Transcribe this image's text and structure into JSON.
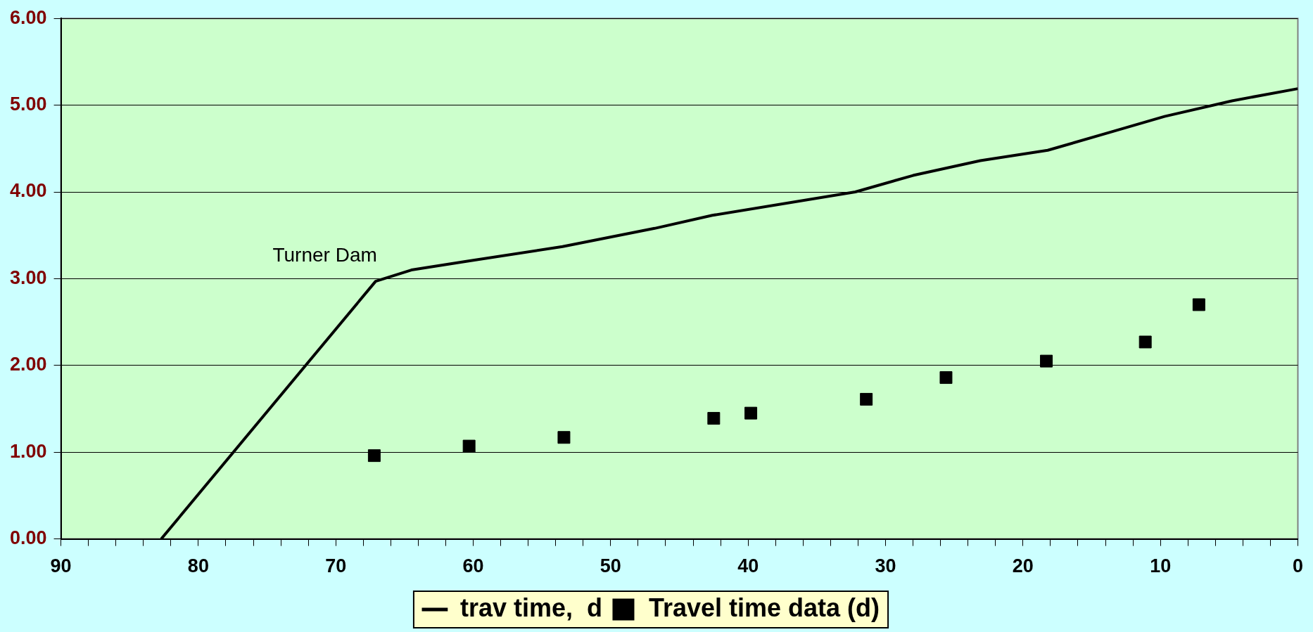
{
  "chart_data": {
    "type": "line",
    "xlim": [
      90,
      0
    ],
    "xticks": [
      90,
      {
        "value": 88,
        "label": null
      },
      {
        "value": 86,
        "label": null
      },
      {
        "value": 84,
        "label": null
      },
      {
        "value": 82,
        "label": null
      },
      80,
      {
        "value": 78,
        "label": null
      },
      {
        "value": 76,
        "label": null
      },
      {
        "value": 74,
        "label": null
      },
      {
        "value": 72,
        "label": null
      },
      70,
      {
        "value": 68,
        "label": null
      },
      {
        "value": 66,
        "label": null
      },
      {
        "value": 64,
        "label": null
      },
      {
        "value": 62,
        "label": null
      },
      60,
      {
        "value": 58,
        "label": null
      },
      {
        "value": 56,
        "label": null
      },
      {
        "value": 54,
        "label": null
      },
      {
        "value": 52,
        "label": null
      },
      50,
      {
        "value": 48,
        "label": null
      },
      {
        "value": 46,
        "label": null
      },
      {
        "value": 44,
        "label": null
      },
      {
        "value": 42,
        "label": null
      },
      40,
      {
        "value": 38,
        "label": null
      },
      {
        "value": 36,
        "label": null
      },
      {
        "value": 34,
        "label": null
      },
      {
        "value": 32,
        "label": null
      },
      30,
      {
        "value": 28,
        "label": null
      },
      {
        "value": 26,
        "label": null
      },
      {
        "value": 24,
        "label": null
      },
      {
        "value": 22,
        "label": null
      },
      20,
      {
        "value": 18,
        "label": null
      },
      {
        "value": 16,
        "label": null
      },
      {
        "value": 14,
        "label": null
      },
      {
        "value": 12,
        "label": null
      },
      10,
      {
        "value": 8,
        "label": null
      },
      {
        "value": 6,
        "label": null
      },
      {
        "value": 4,
        "label": null
      },
      {
        "value": 2,
        "label": null
      },
      0
    ],
    "ylim": [
      0,
      6
    ],
    "yticks": [
      {
        "value": 0,
        "label": "0.00"
      },
      {
        "value": 1,
        "label": "1.00"
      },
      {
        "value": 2,
        "label": "2.00"
      },
      {
        "value": 3,
        "label": "3.00"
      },
      {
        "value": 4,
        "label": "4.00"
      },
      {
        "value": 5,
        "label": "5.00"
      },
      {
        "value": 6,
        "label": "6.00"
      }
    ],
    "grid": "y",
    "legend": "bottom",
    "line_style": "solid",
    "annotations": [
      {
        "text": "Turner Dam",
        "x": 67,
        "y": 2.97
      }
    ],
    "series": [
      {
        "name": "trav time,  d",
        "marker": "none",
        "color": "#000000",
        "x": [
          82.7,
          67.1,
          64.5,
          60.5,
          53.5,
          46.8,
          42.6,
          32.2,
          28.0,
          23.1,
          18.2,
          13.4,
          9.7,
          4.8,
          0
        ],
        "values": [
          0,
          2.97,
          3.1,
          3.2,
          3.37,
          3.58,
          3.73,
          4.0,
          4.19,
          4.36,
          4.48,
          4.7,
          4.87,
          5.05,
          5.19
        ]
      },
      {
        "name": "Travel time data (d)",
        "type": "scatter",
        "marker": "square",
        "color": "#000000",
        "x": [
          67.2,
          60.3,
          53.4,
          42.5,
          39.8,
          31.4,
          25.6,
          18.3,
          11.1,
          7.2
        ],
        "values": [
          0.96,
          1.07,
          1.17,
          1.39,
          1.45,
          1.61,
          1.86,
          2.05,
          2.27,
          2.7
        ]
      }
    ]
  }
}
